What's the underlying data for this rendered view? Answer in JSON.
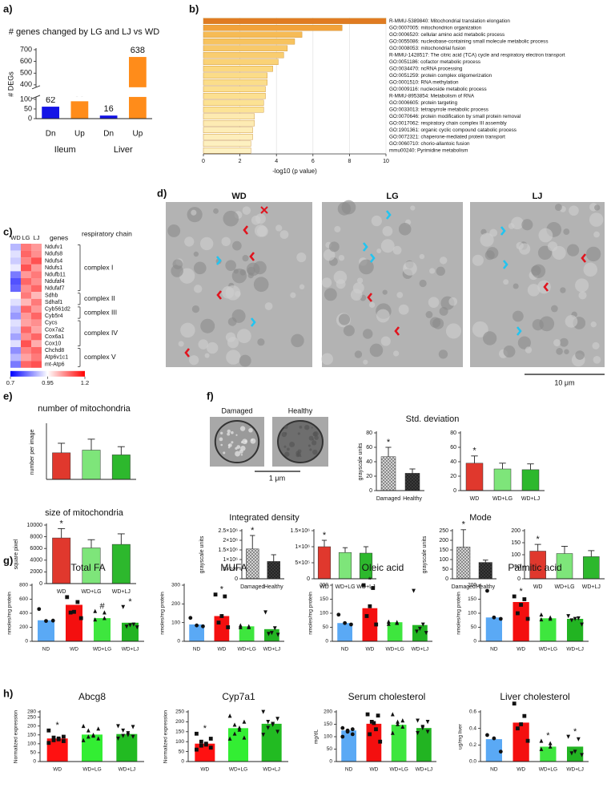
{
  "chart_data": [
    {
      "type": "bar",
      "panel": "a)",
      "title": "# genes changed by LG and LJ vs WD",
      "ylabel": "# DEGs",
      "categories": [
        "Dn",
        "Up",
        "Dn",
        "Up"
      ],
      "groups": [
        "Ileum",
        "Liver"
      ],
      "values": [
        62,
        90,
        16,
        638
      ],
      "colors": [
        "#1414e6",
        "#ff8c1a",
        "#1414e6",
        "#ff8c1a"
      ],
      "show_values": true,
      "ylim": [
        0,
        700
      ],
      "yticks": [
        0,
        50,
        100,
        400,
        500,
        600,
        700
      ],
      "axis_break": [
        100,
        400
      ]
    },
    {
      "type": "hbar",
      "panel": "b)",
      "xlabel": "-log10 (p value)",
      "categories": [
        "R-MMU-5389840: Mitochondrial translation elongation",
        "GO:0007005: mitochondrion organization",
        "GO:0006520: cellular amino acid metabolic process",
        "GO:0055086: nucleobase-containing small molecule metabolic process",
        "GO:0008053: mitochondrial fusion",
        "R-MMU-1428517: The citric acid (TCA) cycle and respiratory electron transport",
        "GO:0051186: cofactor metabolic process",
        "GO:0034470: ncRNA processing",
        "GO:0051259: protein complex oligomerization",
        "GO:0001510: RNA methylation",
        "GO:0009116: nucleoside metabolic process",
        "R-MMU-8953854: Metabolism of RNA",
        "GO:0006605: protein targeting",
        "GO:0033013: tetrapyrrole metabolic process",
        "GO:0070646: protein modification by small protein removal",
        "GO:0017062: respiratory chain complex III assembly",
        "GO:1901361: organic cyclic compound catabolic process",
        "GO:0072321: chaperone-mediated protein transport",
        "GO:0060710: chorio-allantoic fusion",
        "mmu00240: Pyrimidine metabolism"
      ],
      "values": [
        10.0,
        7.6,
        5.4,
        5.0,
        4.6,
        4.4,
        4.1,
        3.8,
        3.5,
        3.5,
        3.4,
        3.4,
        3.3,
        3.3,
        2.8,
        2.8,
        2.7,
        2.7,
        2.6,
        2.6
      ],
      "colors": [
        "#e07b22",
        "#f2a23a",
        "#f6bb55",
        "#f7c35f",
        "#f8c96a",
        "#f9cd70",
        "#fad276",
        "#fbd87f",
        "#fbdc88",
        "#fbdd8a",
        "#fcdf8e",
        "#fce090",
        "#fce293",
        "#fce396",
        "#fdeab0",
        "#fdebb3",
        "#fdedb8",
        "#fdeebb",
        "#fdf0c0",
        "#fdf1c3"
      ],
      "xlim": [
        0,
        10
      ],
      "xticks": [
        0,
        2,
        4,
        6,
        8,
        10
      ],
      "grid": true
    },
    {
      "type": "heatmap",
      "panel": "c)",
      "columns": [
        "WD",
        "LG",
        "LJ"
      ],
      "row_header": "genes",
      "group_header": "respiratory chain",
      "rows": [
        "Ndufv1",
        "Ndufs8",
        "Ndufs4",
        "Ndufs1",
        "Ndufb11",
        "Ndufaf4",
        "Ndufaf7",
        "Sdhb",
        "Sdhaf1",
        "Cyb561d2",
        "Cyb5r4",
        "Cycs",
        "Cox7a2",
        "Cox6a1",
        "Cox10",
        "Chchd8",
        "Atp6v1c1",
        "mt-Atp6"
      ],
      "row_groups": [
        "complex I",
        "complex I",
        "complex I",
        "complex I",
        "complex I",
        "complex I",
        "complex I",
        "complex II",
        "complex II",
        "complex III",
        "complex III",
        "complex IV",
        "complex IV",
        "complex IV",
        "complex IV",
        "complex V",
        "complex V",
        "complex V"
      ],
      "values": [
        [
          0.88,
          1.08,
          1.05
        ],
        [
          0.92,
          1.1,
          1.06
        ],
        [
          0.9,
          1.07,
          1.12
        ],
        [
          0.93,
          1.12,
          1.05
        ],
        [
          0.82,
          1.05,
          1.08
        ],
        [
          0.78,
          1.1,
          1.06
        ],
        [
          0.8,
          1.06,
          1.1
        ],
        [
          0.95,
          1.08,
          1.02
        ],
        [
          0.92,
          1.02,
          1.08
        ],
        [
          0.88,
          1.1,
          1.05
        ],
        [
          0.85,
          1.05,
          1.1
        ],
        [
          0.92,
          1.04,
          1.06
        ],
        [
          0.9,
          1.1,
          1.04
        ],
        [
          0.86,
          1.06,
          1.1
        ],
        [
          0.92,
          1.12,
          1.03
        ],
        [
          0.84,
          1.07,
          1.1
        ],
        [
          0.88,
          1.04,
          1.08
        ],
        [
          0.82,
          1.1,
          1.12
        ]
      ],
      "clim": [
        0.7,
        1.2
      ],
      "cticks": [
        0.7,
        0.95,
        1.2
      ],
      "cmap": [
        "#0000ff",
        "#ffffff",
        "#ff0000"
      ]
    },
    {
      "type": "bar",
      "panel": "e)",
      "title": "number of mitochondria",
      "ylabel": "number per image",
      "values": [
        39,
        43,
        36
      ],
      "errors": [
        14,
        16,
        12
      ],
      "colors": [
        "#e0382d",
        "#7ee57a",
        "#2db82d"
      ],
      "ylim": [
        0,
        80
      ]
    },
    {
      "type": "bar",
      "title": "size of mitochondria",
      "ylabel": "square pixel",
      "categories": [
        "WD",
        "WD+LG",
        "WD+LJ"
      ],
      "values": [
        7800,
        6100,
        6700
      ],
      "errors": [
        1600,
        1400,
        1800
      ],
      "annotations": [
        "*",
        null,
        null
      ],
      "colors": [
        "#e0382d",
        "#7ee57a",
        "#2db82d"
      ],
      "ylim": [
        0,
        10000
      ],
      "yticks": [
        0,
        2000,
        4000,
        6000,
        8000,
        10000
      ]
    },
    {
      "type": "bar",
      "title": "Std. deviation",
      "ylabel": "grayscale units",
      "categories": [
        "Damaged",
        "Healthy"
      ],
      "values": [
        47,
        24
      ],
      "errors": [
        13,
        6
      ],
      "annotations": [
        "*",
        null
      ],
      "colors": [
        "#d4d4d4",
        "#3a3a3a"
      ],
      "pattern": "checker",
      "ylim": [
        0,
        80
      ],
      "yticks": [
        0,
        20,
        40,
        60,
        80
      ]
    },
    {
      "type": "bar",
      "categories": [
        "WD",
        "WD+LG",
        "WD+LJ"
      ],
      "values": [
        38,
        30,
        29
      ],
      "errors": [
        10,
        8,
        8
      ],
      "annotations": [
        "*",
        null,
        null
      ],
      "colors": [
        "#e0382d",
        "#7ee57a",
        "#2db82d"
      ],
      "ylim": [
        0,
        80
      ],
      "yticks": [
        0,
        20,
        40,
        60,
        80
      ]
    },
    {
      "type": "bar",
      "title": "Integrated density",
      "ylabel": "grayscale units",
      "categories": [
        "Damaged",
        "Healthy"
      ],
      "values": [
        1550000,
        900000
      ],
      "errors": [
        700000,
        350000
      ],
      "annotations": [
        "*",
        null
      ],
      "colors": [
        "#d4d4d4",
        "#3a3a3a"
      ],
      "pattern": "checker",
      "ylim": [
        0,
        2500000
      ],
      "yticks": [
        0,
        {
          "value": 500000,
          "label": "5×10⁵"
        },
        {
          "value": 1000000,
          "label": "1×10⁶"
        },
        {
          "value": 1500000,
          "label": "1.5×10⁶"
        },
        {
          "value": 2000000,
          "label": "2×10⁶"
        },
        {
          "value": 2500000,
          "label": "2.5×10⁶"
        }
      ]
    },
    {
      "type": "bar",
      "categories": [
        "WD",
        "WD+LG",
        "WD+LJ"
      ],
      "values": [
        1000000,
        820000,
        800000
      ],
      "errors": [
        200000,
        150000,
        200000
      ],
      "annotations": [
        "*",
        null,
        null
      ],
      "colors": [
        "#e0382d",
        "#7ee57a",
        "#2db82d"
      ],
      "ylim": [
        0,
        1500000
      ],
      "yticks": [
        0,
        {
          "value": 500000,
          "label": "5×10⁵"
        },
        {
          "value": 1000000,
          "label": "1×10⁶"
        },
        {
          "value": 1500000,
          "label": "1.5×10⁶"
        }
      ]
    },
    {
      "type": "bar",
      "title": "Mode",
      "ylabel": "grayscale units",
      "categories": [
        "Damaged",
        "Healthy"
      ],
      "values": [
        165,
        85
      ],
      "errors": [
        90,
        12
      ],
      "annotations": [
        "*",
        null
      ],
      "colors": [
        "#d4d4d4",
        "#3a3a3a"
      ],
      "pattern": "checker",
      "ylim": [
        0,
        250
      ],
      "yticks": [
        0,
        50,
        100,
        150,
        200,
        250
      ]
    },
    {
      "type": "bar",
      "categories": [
        "WD",
        "WD+LG",
        "WD+LJ"
      ],
      "values": [
        115,
        105,
        92
      ],
      "errors": [
        28,
        30,
        25
      ],
      "annotations": [
        "*",
        null,
        null
      ],
      "colors": [
        "#e0382d",
        "#7ee57a",
        "#2db82d"
      ],
      "ylim": [
        0,
        200
      ],
      "yticks": [
        0,
        50,
        100,
        150,
        200
      ]
    },
    {
      "type": "bar",
      "panel": "g)",
      "title": "Total FA",
      "ylabel": "nmoles/mg protein",
      "categories": [
        "ND",
        "WD",
        "WD+LG",
        "WD+LJ"
      ],
      "values": [
        300,
        520,
        330,
        265
      ],
      "annotations": [
        null,
        null,
        "#",
        "*"
      ],
      "colors": [
        "#5aa9f5",
        "#f40f0f",
        "#3ee63e",
        "#22b422"
      ],
      "markers": [
        "circle",
        "square",
        "triangle",
        "triangle-down"
      ],
      "points": [
        [
          460,
          290,
          295
        ],
        [
          630,
          560,
          420,
          410,
          330
        ],
        [
          430,
          410,
          330,
          310
        ],
        [
          490,
          240,
          230,
          210,
          200
        ]
      ],
      "ylim": [
        0,
        800
      ],
      "yticks": [
        0,
        200,
        400,
        600,
        800
      ]
    },
    {
      "type": "bar",
      "title": "MUFA",
      "ylabel": "nmoles/mg protein",
      "categories": [
        "ND",
        "WD",
        "WD+LG",
        "WD+LJ"
      ],
      "values": [
        90,
        135,
        80,
        65
      ],
      "annotations": [
        null,
        "*",
        null,
        null
      ],
      "colors": [
        "#5aa9f5",
        "#f40f0f",
        "#3ee63e",
        "#22b422"
      ],
      "markers": [
        "circle",
        "square",
        "triangle",
        "triangle-down"
      ],
      "points": [
        [
          125,
          85,
          80
        ],
        [
          250,
          240,
          135,
          100,
          75
        ],
        [
          85,
          80,
          75,
          75
        ],
        [
          155,
          70,
          45,
          40,
          35
        ]
      ],
      "ylim": [
        0,
        300
      ],
      "yticks": [
        0,
        100,
        200,
        300
      ]
    },
    {
      "type": "bar",
      "title": "Oleic acid",
      "ylabel": "nmoles/mg protein",
      "categories": [
        "ND",
        "WD",
        "WD+LG",
        "WD+LJ"
      ],
      "values": [
        65,
        118,
        68,
        58
      ],
      "annotations": [
        null,
        "*",
        null,
        null
      ],
      "colors": [
        "#5aa9f5",
        "#f40f0f",
        "#3ee63e",
        "#22b422"
      ],
      "markers": [
        "circle",
        "square",
        "triangle",
        "triangle-down"
      ],
      "points": [
        [
          95,
          65,
          60
        ],
        [
          200,
          190,
          125,
          90,
          60
        ],
        [
          70,
          68,
          65,
          62
        ],
        [
          180,
          60,
          45,
          35,
          30
        ]
      ],
      "ylim": [
        0,
        200
      ],
      "yticks": [
        0,
        50,
        100,
        150,
        200
      ]
    },
    {
      "type": "bar",
      "title": "Palmitic acid",
      "ylabel": "nmoles/mg protein",
      "categories": [
        "ND",
        "WD",
        "WD+LG",
        "WD+LJ"
      ],
      "values": [
        85,
        140,
        82,
        80
      ],
      "annotations": [
        null,
        "*",
        null,
        null
      ],
      "colors": [
        "#5aa9f5",
        "#f40f0f",
        "#3ee63e",
        "#22b422"
      ],
      "markers": [
        "circle",
        "square",
        "triangle",
        "triangle-down"
      ],
      "points": [
        [
          180,
          85,
          80
        ],
        [
          160,
          150,
          130,
          100,
          80
        ],
        [
          95,
          85,
          80,
          78
        ],
        [
          90,
          82,
          80,
          75,
          60
        ]
      ],
      "ylim": [
        0,
        200
      ],
      "yticks": [
        0,
        50,
        100,
        150,
        200
      ]
    },
    {
      "type": "bar",
      "panel": "h)",
      "title": "Abcg8",
      "ylabel": "Normalized expression",
      "categories": [
        "WD",
        "WD+LG",
        "WD+LJ"
      ],
      "values": [
        130,
        152,
        155
      ],
      "annotations": [
        "*",
        null,
        null
      ],
      "colors": [
        "#ff1111",
        "#33ee33",
        "#22bb22"
      ],
      "markers": [
        "square",
        "triangle",
        "triangle-down"
      ],
      "points": [
        [
          175,
          140,
          135,
          130,
          125,
          120,
          115,
          105
        ],
        [
          200,
          185,
          175,
          150,
          145,
          140,
          130,
          120
        ],
        [
          200,
          195,
          175,
          160,
          150,
          145,
          140,
          130
        ]
      ],
      "ylim": [
        0,
        280
      ],
      "yticks": [
        0,
        50,
        100,
        150,
        200,
        250,
        280
      ]
    },
    {
      "type": "bar",
      "title": "Cyp7a1",
      "ylabel": "Normalized expression",
      "categories": [
        "WD",
        "WD+LG",
        "WD+LJ"
      ],
      "values": [
        90,
        168,
        190
      ],
      "annotations": [
        "*",
        null,
        null
      ],
      "colors": [
        "#ff1111",
        "#33ee33",
        "#22bb22"
      ],
      "markers": [
        "square",
        "triangle",
        "triangle-down"
      ],
      "points": [
        [
          140,
          115,
          100,
          90,
          85,
          80,
          70,
          60
        ],
        [
          230,
          200,
          185,
          170,
          160,
          140,
          120,
          115
        ],
        [
          250,
          215,
          200,
          190,
          185,
          170,
          150,
          135
        ]
      ],
      "ylim": [
        0,
        250
      ],
      "yticks": [
        0,
        50,
        100,
        150,
        200,
        250
      ]
    },
    {
      "type": "bar",
      "title": "Serum cholesterol",
      "ylabel": "mg/dL",
      "categories": [
        "ND",
        "WD",
        "WD+LG",
        "WD+LJ"
      ],
      "values": [
        125,
        152,
        148,
        135
      ],
      "colors": [
        "#5aa9f5",
        "#f40f0f",
        "#3ee63e",
        "#22b422"
      ],
      "markers": [
        "circle",
        "square",
        "triangle",
        "triangle-down"
      ],
      "points": [
        [
          135,
          130,
          125,
          120,
          110,
          100
        ],
        [
          190,
          185,
          160,
          155,
          130,
          110,
          80
        ],
        [
          190,
          165,
          160,
          150,
          140,
          115
        ],
        [
          165,
          160,
          140,
          135,
          120,
          115
        ]
      ],
      "ylim": [
        0,
        200
      ],
      "yticks": [
        0,
        50,
        100,
        150,
        200
      ]
    },
    {
      "type": "bar",
      "title": "Liver cholesterol",
      "ylabel": "ug/mg liver",
      "categories": [
        "ND",
        "WD",
        "WD+LG",
        "WD+LJ"
      ],
      "values": [
        0.27,
        0.47,
        0.18,
        0.18
      ],
      "annotations": [
        null,
        null,
        "*",
        "*"
      ],
      "colors": [
        "#5aa9f5",
        "#f40f0f",
        "#3ee63e",
        "#22b422"
      ],
      "markers": [
        "circle",
        "square",
        "triangle",
        "triangle-down"
      ],
      "points": [
        [
          0.32,
          0.28,
          0.12
        ],
        [
          0.7,
          0.55,
          0.45,
          0.4,
          0.25
        ],
        [
          0.25,
          0.22,
          0.18,
          0.15
        ],
        [
          0.3,
          0.27,
          0.12,
          0.1,
          0.08
        ]
      ],
      "ylim": [
        0,
        0.6
      ],
      "yticks": [
        {
          "value": 0,
          "label": "0.0"
        },
        0.2,
        0.4,
        0.6
      ]
    }
  ],
  "micrographs": {
    "d": {
      "panel": "d)",
      "titles": [
        "WD",
        "LG",
        "LJ"
      ],
      "scale_bar": "10 μm"
    },
    "f": {
      "panel": "f)",
      "titles": [
        "Damaged",
        "Healthy"
      ],
      "scale_bar": "1 μm"
    }
  }
}
